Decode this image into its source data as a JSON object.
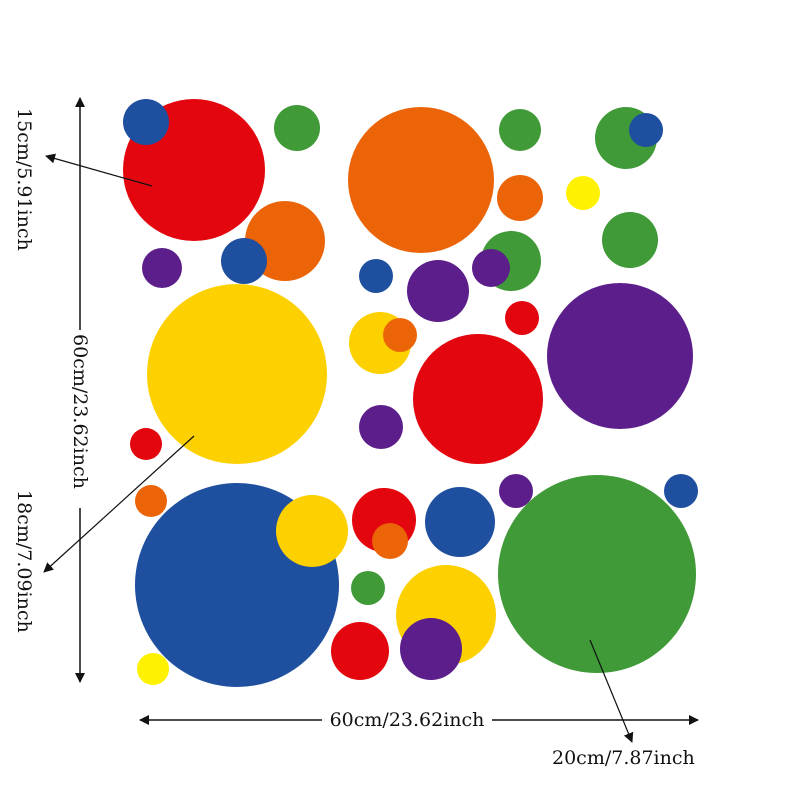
{
  "colors": {
    "red": "#e3060f",
    "orange": "#ec6408",
    "yellow": "#fdd000",
    "bright_yellow": "#fff200",
    "green": "#3f9a37",
    "blue": "#1f4f9f",
    "purple": "#5b1e8a"
  },
  "labels": {
    "dot_15cm": "15cm/5.91inch",
    "height_60cm": "60cm/23.62inch",
    "dot_18cm": "18cm/7.09inch",
    "width_60cm": "60cm/23.62inch",
    "dot_20cm": "20cm/7.87inch"
  },
  "dots": [
    {
      "color": "red"
    },
    {
      "color": "blue"
    },
    {
      "color": "orange"
    },
    {
      "color": "green"
    },
    {
      "color": "blue"
    },
    {
      "color": "purple"
    },
    {
      "color": "orange"
    },
    {
      "color": "green"
    },
    {
      "color": "orange"
    },
    {
      "color": "bright_yellow"
    },
    {
      "color": "green"
    },
    {
      "color": "blue"
    },
    {
      "color": "green"
    },
    {
      "color": "green"
    },
    {
      "color": "yellow"
    },
    {
      "color": "yellow"
    },
    {
      "color": "orange"
    },
    {
      "color": "blue"
    },
    {
      "color": "purple"
    },
    {
      "color": "purple"
    },
    {
      "color": "red"
    },
    {
      "color": "red"
    },
    {
      "color": "purple"
    },
    {
      "color": "purple"
    },
    {
      "color": "red"
    },
    {
      "color": "blue"
    },
    {
      "color": "yellow"
    },
    {
      "color": "orange"
    },
    {
      "color": "red"
    },
    {
      "color": "orange"
    },
    {
      "color": "blue"
    },
    {
      "color": "purple"
    },
    {
      "color": "green"
    },
    {
      "color": "blue"
    },
    {
      "color": "green"
    },
    {
      "color": "yellow"
    },
    {
      "color": "red"
    },
    {
      "color": "purple"
    },
    {
      "color": "bright_yellow"
    }
  ]
}
